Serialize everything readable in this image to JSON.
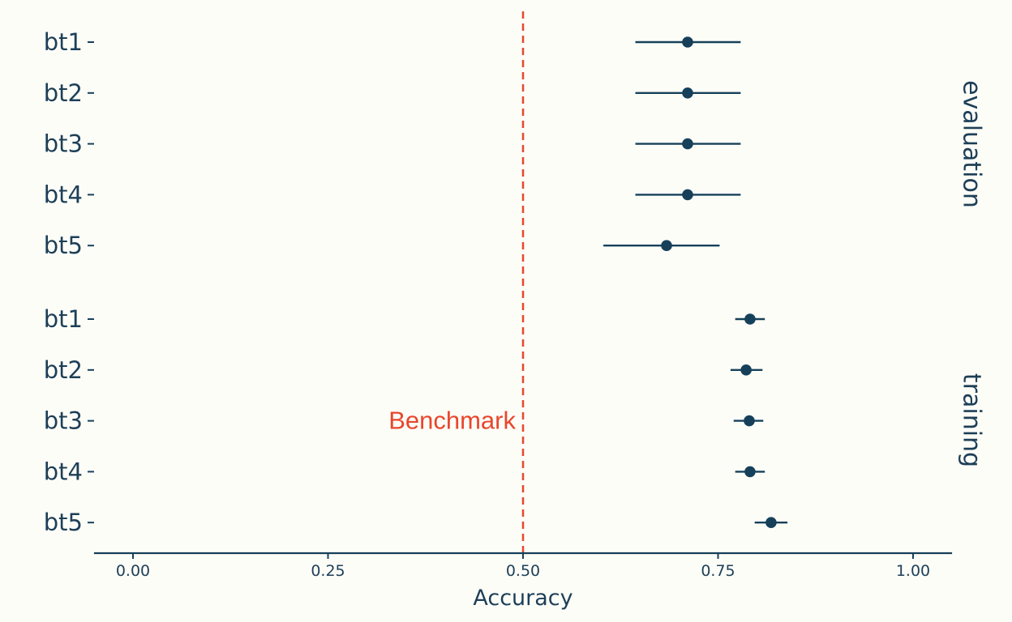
{
  "chart_data": {
    "type": "scatter",
    "subtype": "point-range (forest plot), faceted",
    "xlabel": "Accuracy",
    "xlim": [
      -0.05,
      1.05
    ],
    "xticks": [
      0,
      0.25,
      0.5,
      0.75,
      1.0
    ],
    "xtick_labels": [
      "0.00",
      "0.25",
      "0.50",
      "0.75",
      "1.00"
    ],
    "grid": false,
    "colors": {
      "point": "#16405a",
      "benchmark": "#e8472c",
      "text": "#1d3f57",
      "background": "#fdfdf8"
    },
    "benchmark": {
      "x": 0.5,
      "label": "Benchmark"
    },
    "facets": [
      {
        "name": "evaluation",
        "rows": [
          {
            "label": "bt1",
            "estimate": 0.711,
            "low": 0.644,
            "high": 0.779
          },
          {
            "label": "bt2",
            "estimate": 0.711,
            "low": 0.644,
            "high": 0.779
          },
          {
            "label": "bt3",
            "estimate": 0.711,
            "low": 0.644,
            "high": 0.779
          },
          {
            "label": "bt4",
            "estimate": 0.711,
            "low": 0.644,
            "high": 0.779
          },
          {
            "label": "bt5",
            "estimate": 0.684,
            "low": 0.603,
            "high": 0.752
          }
        ]
      },
      {
        "name": "training",
        "rows": [
          {
            "label": "bt1",
            "estimate": 0.791,
            "low": 0.772,
            "high": 0.81
          },
          {
            "label": "bt2",
            "estimate": 0.786,
            "low": 0.766,
            "high": 0.807
          },
          {
            "label": "bt3",
            "estimate": 0.79,
            "low": 0.77,
            "high": 0.808
          },
          {
            "label": "bt4",
            "estimate": 0.791,
            "low": 0.772,
            "high": 0.81
          },
          {
            "label": "bt5",
            "estimate": 0.818,
            "low": 0.797,
            "high": 0.839
          }
        ]
      }
    ]
  }
}
